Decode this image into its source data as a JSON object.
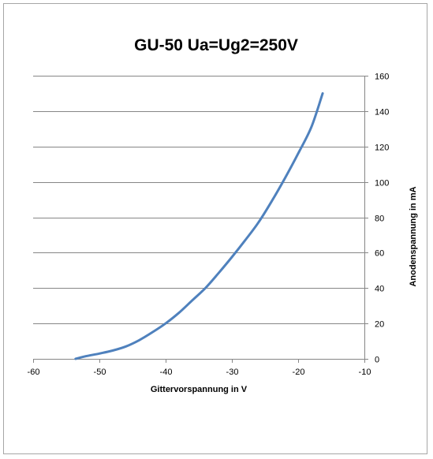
{
  "chart_data": {
    "type": "line",
    "title": "GU-50 Ua=Ug2=250V",
    "xlabel": "Gittervorspannung  in V",
    "ylabel": "Anodenspannung  in  mA",
    "xlim": [
      -60,
      -10
    ],
    "ylim": [
      0,
      160
    ],
    "x_ticks": [
      -60,
      -50,
      -40,
      -30,
      -20,
      -10
    ],
    "y_ticks": [
      0,
      20,
      40,
      60,
      80,
      100,
      120,
      140,
      160
    ],
    "y_axis_side": "right",
    "grid": "horizontal",
    "legend": "none",
    "series": [
      {
        "color": "#4f81bd",
        "x": [
          -53.6,
          -52,
          -50,
          -48,
          -46,
          -44,
          -42,
          -40,
          -38,
          -36,
          -34,
          -32,
          -30,
          -28,
          -26,
          -24,
          -22,
          -20,
          -18,
          -16.3
        ],
        "y": [
          0,
          1.5,
          3,
          4.7,
          7,
          10.5,
          15,
          20,
          26,
          33,
          40,
          48.5,
          57.5,
          67,
          77,
          89,
          102,
          116,
          131,
          150
        ]
      }
    ]
  }
}
